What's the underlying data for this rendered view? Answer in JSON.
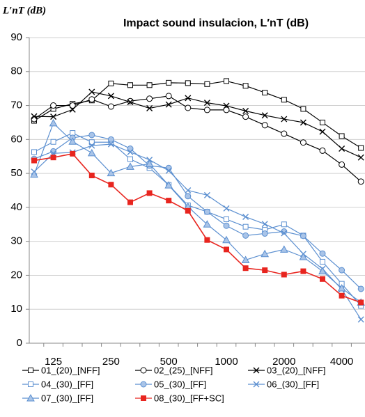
{
  "chart_data": {
    "type": "line",
    "title": "Impact sound insulacion, L′nT (dB)",
    "y_label": "L′nT (dB)",
    "categories": [
      null,
      "125",
      null,
      null,
      "250",
      null,
      null,
      "500",
      null,
      null,
      "1000",
      null,
      null,
      "2000",
      null,
      null,
      "4000",
      null
    ],
    "ylim": [
      0,
      90
    ],
    "yticks": [
      0,
      10,
      20,
      30,
      40,
      50,
      60,
      70,
      80,
      90
    ],
    "grid": true,
    "series": [
      {
        "name": "01_(20)_[NFF]",
        "color": "#000000",
        "marker": "square",
        "values": [
          65.5,
          69,
          70.5,
          71.5,
          76.5,
          76,
          76,
          76.7,
          76.6,
          76.3,
          77.2,
          75.8,
          73.8,
          71.7,
          69,
          65,
          61,
          57.5
        ]
      },
      {
        "name": "02_(25)_[NFF]",
        "color": "#000000",
        "marker": "circle",
        "values": [
          66,
          70,
          70,
          71.8,
          69.7,
          71.3,
          72,
          72.8,
          69.3,
          68.7,
          68.7,
          66.7,
          64.2,
          61.7,
          59.1,
          56.7,
          52.6,
          47.6
        ]
      },
      {
        "name": "03_(20)_[NFF]",
        "color": "#000000",
        "marker": "x",
        "values": [
          66.8,
          66.7,
          68.8,
          74,
          72.8,
          71,
          69.2,
          70.3,
          72.2,
          70.8,
          69.9,
          68.4,
          67.1,
          66,
          65,
          62.3,
          57.3,
          54.7
        ]
      },
      {
        "name": "04_(30)_[FF]",
        "color": "#5b8fd0",
        "marker": "square",
        "values": [
          56.3,
          59.3,
          61.9,
          59.2,
          59.2,
          54.2,
          51.6,
          46.6,
          40.6,
          38.7,
          36.5,
          34.3,
          33.4,
          35,
          31.7,
          24,
          17.5,
          11
        ]
      },
      {
        "name": "05_(30)_[FF]",
        "color": "#5b8fd0",
        "marker": "circle",
        "values": [
          54.3,
          56.5,
          60.5,
          61.3,
          60,
          57.3,
          52.3,
          51.6,
          43.3,
          38.7,
          34.6,
          31.7,
          32.3,
          32.9,
          31.6,
          26.4,
          21.5,
          16
        ]
      },
      {
        "name": "06_(30)_[FF]",
        "color": "#5b8fd0",
        "marker": "x",
        "values": [
          50.5,
          55.9,
          56.2,
          58.2,
          58.6,
          56.3,
          54,
          50.8,
          45,
          43.6,
          39.7,
          37.2,
          35.1,
          32.4,
          26.3,
          21.9,
          15.9,
          7
        ]
      },
      {
        "name": "07_(30)_[FF]",
        "color": "#5b8fd0",
        "marker": "triangle",
        "values": [
          49.7,
          64.8,
          59.4,
          56,
          50.1,
          52,
          52.8,
          46.5,
          40.2,
          35,
          30.4,
          24.5,
          26.3,
          27.6,
          25.4,
          21.2,
          16.2,
          12
        ]
      },
      {
        "name": "08_(30)_[FF+SC]",
        "color": "#e8251f",
        "marker": "square-filled",
        "values": [
          53.8,
          54.7,
          55.8,
          49.4,
          46.7,
          41.5,
          44.2,
          42,
          39,
          30.4,
          27.6,
          22.1,
          21.5,
          20.2,
          21.2,
          18.9,
          14,
          12
        ]
      }
    ]
  }
}
